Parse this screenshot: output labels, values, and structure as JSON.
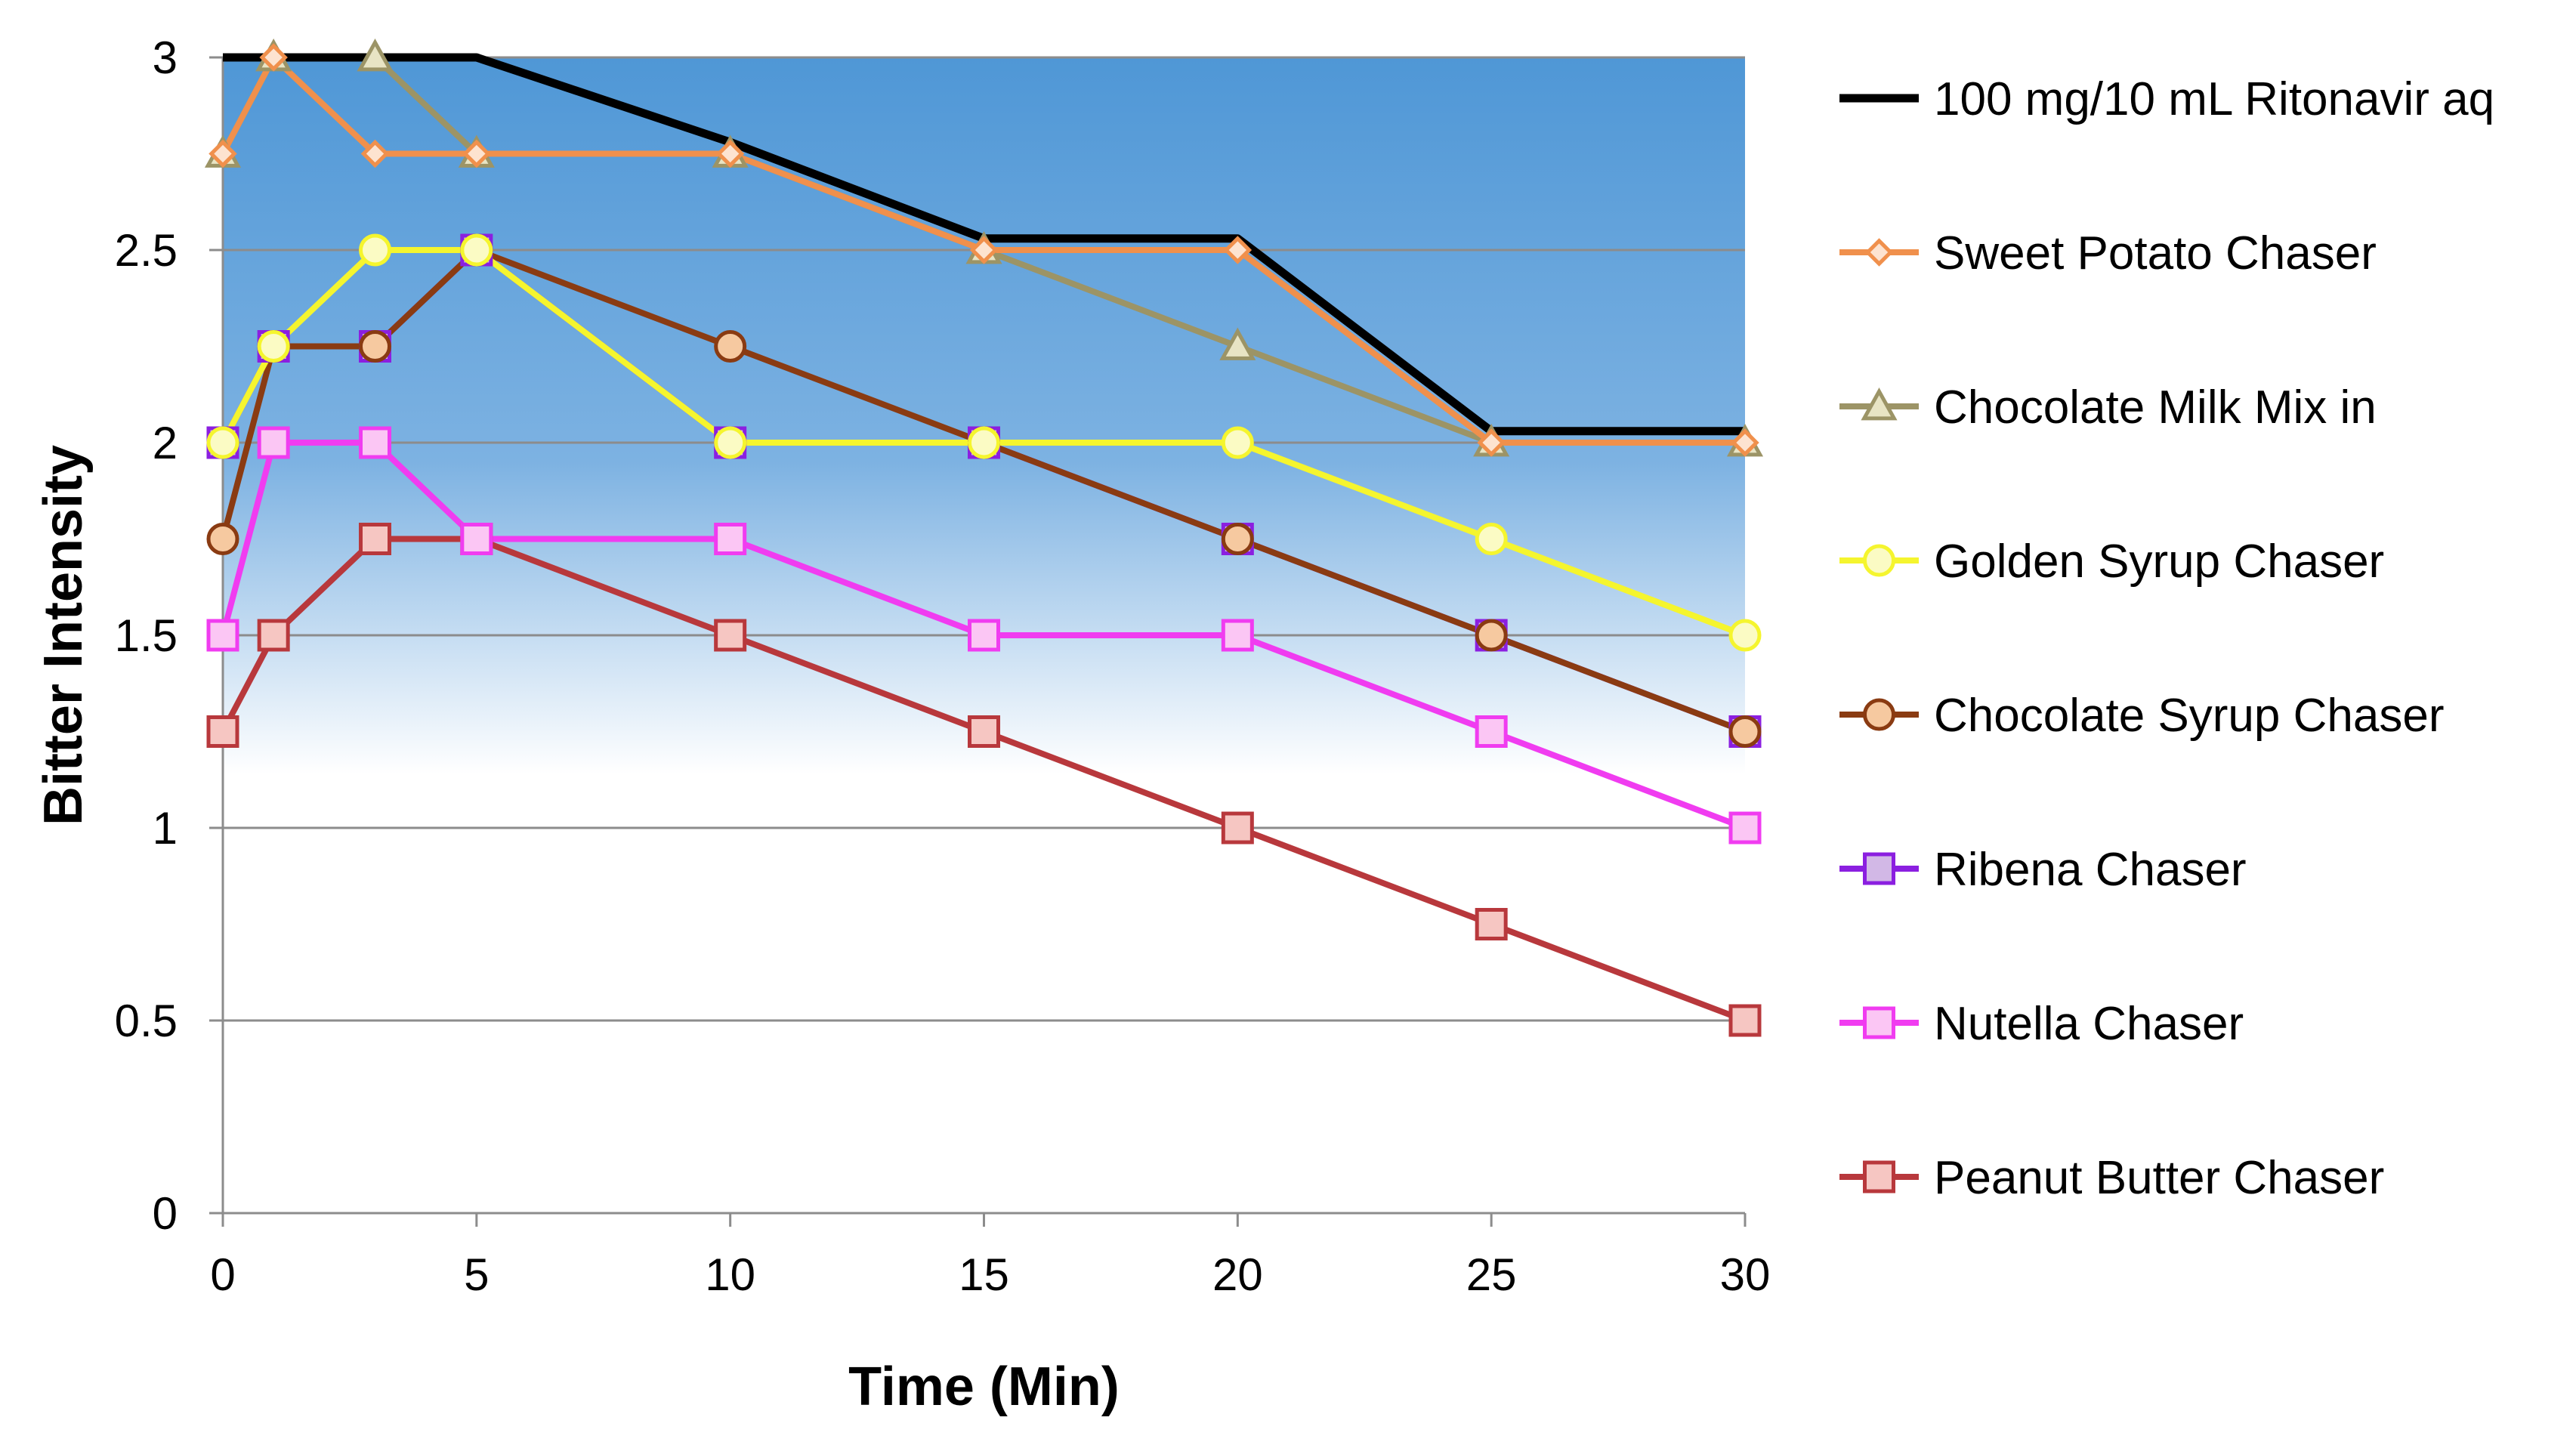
{
  "chart_data": {
    "type": "line",
    "xlabel": "Time (Min)",
    "ylabel": "Bitter Intensity",
    "x": [
      0,
      1,
      3,
      5,
      10,
      15,
      20,
      25,
      30
    ],
    "xticks": [
      0,
      5,
      10,
      15,
      20,
      25,
      30
    ],
    "yticks": [
      0,
      0.5,
      1,
      1.5,
      2,
      2.5,
      3
    ],
    "xlim": [
      0,
      30
    ],
    "ylim": [
      0,
      3
    ],
    "grid": "horizontal",
    "background": "blue gradient from top fading to white around 1.1",
    "legend": "right",
    "series": [
      {
        "name": "100 mg/10 mL Ritonavir aq",
        "color": "#000000",
        "marker": "none",
        "fill": "none",
        "values": [
          3,
          3,
          3,
          3,
          2.78,
          2.53,
          2.53,
          2.03,
          2.03
        ]
      },
      {
        "name": "Sweet Potato Chaser",
        "color": "#f0904c",
        "marker": "diamond",
        "fill": "#fde3d0",
        "values": [
          2.75,
          3,
          2.75,
          2.75,
          2.75,
          2.5,
          2.5,
          2,
          2
        ]
      },
      {
        "name": "Chocolate Milk Mix in",
        "color": "#9c9466",
        "marker": "triangle",
        "fill": "#e8e4c4",
        "values": [
          2.75,
          3,
          3,
          2.75,
          2.75,
          2.5,
          2.25,
          2,
          2
        ]
      },
      {
        "name": "Golden Syrup Chaser",
        "color": "#f5f52e",
        "marker": "circle",
        "fill": "#fbfbc4",
        "values": [
          2,
          2.25,
          2.5,
          2.5,
          2,
          2,
          2,
          1.75,
          1.5
        ]
      },
      {
        "name": "Chocolate Syrup Chaser",
        "color": "#8a3b12",
        "marker": "circle",
        "fill": "#f6c9a0",
        "values": [
          1.75,
          2.25,
          2.25,
          2.5,
          2.25,
          2,
          1.75,
          1.5,
          1.25
        ]
      },
      {
        "name": "Ribena Chaser",
        "color": "#8b1fe0",
        "marker": "square",
        "fill": "#d2b8e6",
        "values": [
          2,
          2.25,
          2.25,
          2.5,
          2,
          2,
          1.75,
          1.5,
          1.25
        ]
      },
      {
        "name": "Nutella Chaser",
        "color": "#f03cf0",
        "marker": "square",
        "fill": "#fbc6f4",
        "values": [
          1.5,
          2,
          2,
          1.75,
          1.75,
          1.5,
          1.5,
          1.25,
          1
        ]
      },
      {
        "name": "Peanut Butter Chaser",
        "color": "#b8383c",
        "marker": "square",
        "fill": "#f6c6c2",
        "values": [
          1.25,
          1.5,
          1.75,
          1.75,
          1.5,
          1.25,
          1,
          0.75,
          0.5
        ]
      }
    ]
  }
}
